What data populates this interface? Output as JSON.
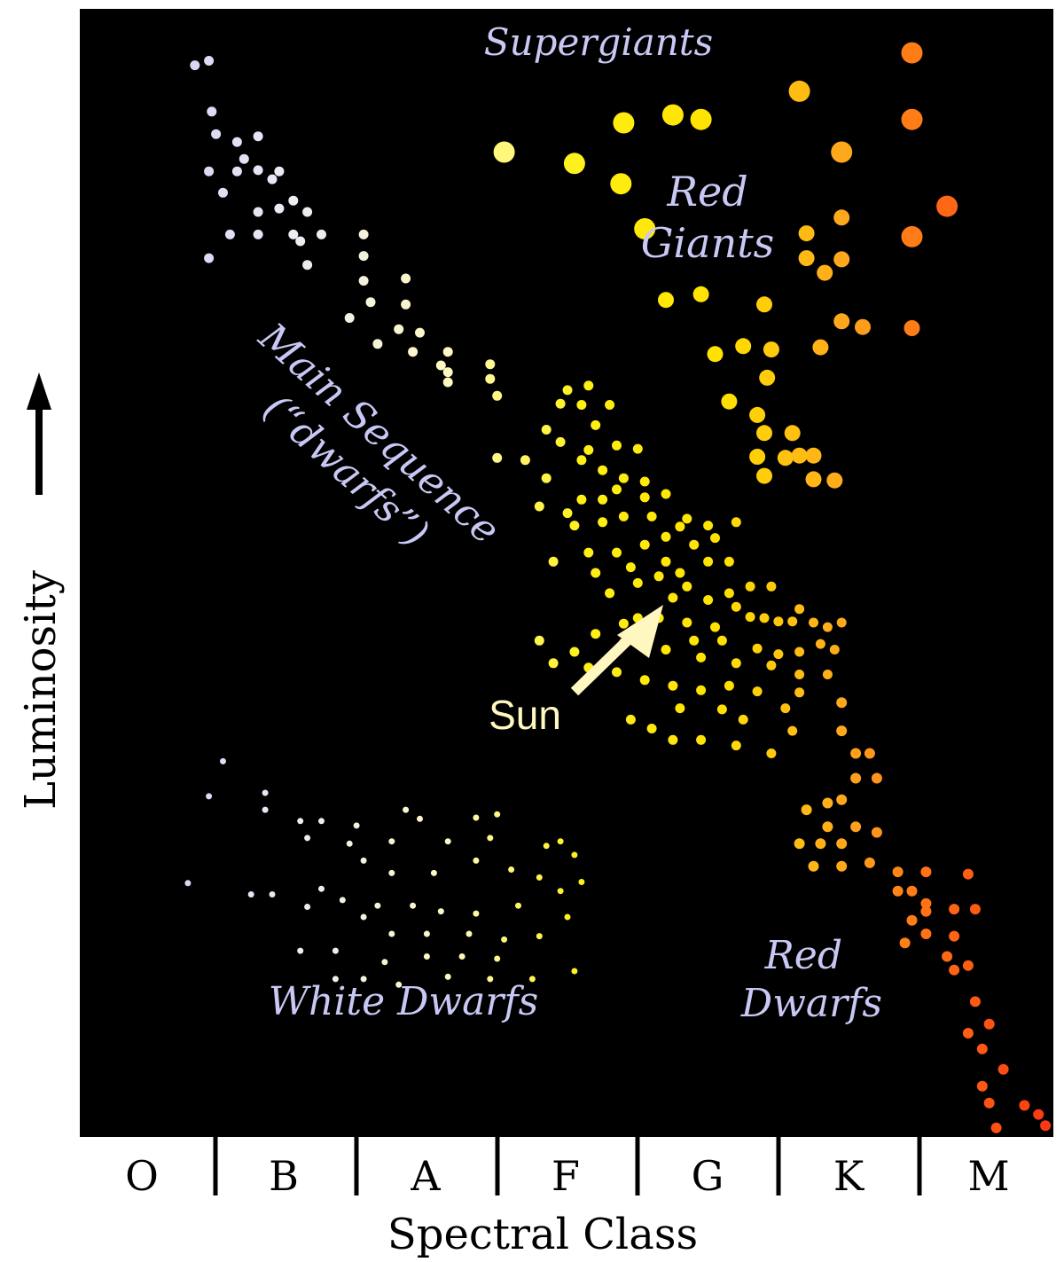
{
  "chart_data": {
    "type": "scatter",
    "title": "",
    "xlabel": "Spectral Class",
    "ylabel": "Luminosity",
    "categories": [
      "O",
      "B",
      "A",
      "F",
      "G",
      "K",
      "M"
    ],
    "x_range": [
      0,
      7
    ],
    "y_range": [
      0,
      1
    ],
    "grid": false,
    "legend": "none",
    "annotations": {
      "supergiants": "Supergiants",
      "red_giants_1": "Red",
      "red_giants_2": "Giants",
      "main_sequence_1": "Main Sequence",
      "main_sequence_2": "(“dwarfs”)",
      "sun": "Sun",
      "white_dwarfs": "White Dwarfs",
      "red_dwarfs_1": "Red",
      "red_dwarfs_2": "Dwarfs"
    },
    "colors": {
      "background": "#000000",
      "label": "#c8c8f5",
      "sun_label": "#fff7c0",
      "arrow": "#fff7c0",
      "axis_text": "#000000"
    },
    "series": [
      {
        "group": "supergiants",
        "color_gradient": true,
        "points": [
          [
            3.05,
            0.873
          ],
          [
            3.55,
            0.863
          ],
          [
            3.9,
            0.899
          ],
          [
            4.25,
            0.906
          ],
          [
            4.45,
            0.902
          ],
          [
            4.05,
            0.805
          ],
          [
            3.88,
            0.845
          ],
          [
            5.15,
            0.927
          ],
          [
            5.45,
            0.873
          ],
          [
            5.95,
            0.961
          ],
          [
            5.95,
            0.902
          ],
          [
            6.2,
            0.825
          ],
          [
            5.95,
            0.798
          ]
        ]
      },
      {
        "group": "red_giants",
        "color_gradient": true,
        "points": [
          [
            4.2,
            0.742
          ],
          [
            4.45,
            0.747
          ],
          [
            4.9,
            0.738
          ],
          [
            4.55,
            0.694
          ],
          [
            4.75,
            0.701
          ],
          [
            4.95,
            0.698
          ],
          [
            4.92,
            0.673
          ],
          [
            5.2,
            0.801
          ],
          [
            5.45,
            0.815
          ],
          [
            5.2,
            0.779
          ],
          [
            5.33,
            0.766
          ],
          [
            5.45,
            0.778
          ],
          [
            5.3,
            0.7
          ],
          [
            5.45,
            0.723
          ],
          [
            5.6,
            0.718
          ],
          [
            5.95,
            0.717
          ],
          [
            4.65,
            0.652
          ],
          [
            4.85,
            0.64
          ],
          [
            4.9,
            0.624
          ],
          [
            5.1,
            0.624
          ],
          [
            5.05,
            0.602
          ],
          [
            4.85,
            0.603
          ],
          [
            5.25,
            0.604
          ],
          [
            4.9,
            0.586
          ],
          [
            5.25,
            0.583
          ],
          [
            5.4,
            0.582
          ],
          [
            5.15,
            0.604
          ]
        ]
      },
      {
        "group": "main_sequence",
        "color_gradient": true,
        "points": [
          [
            0.85,
            0.95
          ],
          [
            0.95,
            0.954
          ],
          [
            0.97,
            0.909
          ],
          [
            1.0,
            0.889
          ],
          [
            1.15,
            0.882
          ],
          [
            1.3,
            0.887
          ],
          [
            1.2,
            0.867
          ],
          [
            0.95,
            0.856
          ],
          [
            1.15,
            0.856
          ],
          [
            1.3,
            0.857
          ],
          [
            1.45,
            0.856
          ],
          [
            1.4,
            0.849
          ],
          [
            1.05,
            0.837
          ],
          [
            1.55,
            0.83
          ],
          [
            1.3,
            0.82
          ],
          [
            1.45,
            0.823
          ],
          [
            1.65,
            0.82
          ],
          [
            1.1,
            0.8
          ],
          [
            1.3,
            0.8
          ],
          [
            1.55,
            0.8
          ],
          [
            1.75,
            0.8
          ],
          [
            1.6,
            0.794
          ],
          [
            0.95,
            0.779
          ],
          [
            1.65,
            0.773
          ],
          [
            2.05,
            0.8
          ],
          [
            2.05,
            0.781
          ],
          [
            2.05,
            0.759
          ],
          [
            2.35,
            0.761
          ],
          [
            2.1,
            0.74
          ],
          [
            2.35,
            0.738
          ],
          [
            1.95,
            0.726
          ],
          [
            2.3,
            0.716
          ],
          [
            2.45,
            0.713
          ],
          [
            2.15,
            0.703
          ],
          [
            2.4,
            0.696
          ],
          [
            2.65,
            0.696
          ],
          [
            2.6,
            0.684
          ],
          [
            2.95,
            0.685
          ],
          [
            2.65,
            0.678
          ],
          [
            2.95,
            0.672
          ],
          [
            2.65,
            0.669
          ],
          [
            3.0,
            0.657
          ],
          [
            3.5,
            0.662
          ],
          [
            3.65,
            0.666
          ],
          [
            3.45,
            0.65
          ],
          [
            3.6,
            0.649
          ],
          [
            3.8,
            0.649
          ],
          [
            3.7,
            0.631
          ],
          [
            3.35,
            0.627
          ],
          [
            3.45,
            0.616
          ],
          [
            3.65,
            0.609
          ],
          [
            3.85,
            0.613
          ],
          [
            4.0,
            0.61
          ],
          [
            3.0,
            0.602
          ],
          [
            3.2,
            0.6
          ],
          [
            3.6,
            0.6
          ],
          [
            3.75,
            0.591
          ],
          [
            3.9,
            0.584
          ],
          [
            4.05,
            0.581
          ],
          [
            3.35,
            0.584
          ],
          [
            3.85,
            0.574
          ],
          [
            4.05,
            0.567
          ],
          [
            3.75,
            0.565
          ],
          [
            3.6,
            0.565
          ],
          [
            4.2,
            0.57
          ],
          [
            3.3,
            0.559
          ],
          [
            3.5,
            0.553
          ],
          [
            3.9,
            0.55
          ],
          [
            4.1,
            0.55
          ],
          [
            3.75,
            0.545
          ],
          [
            3.55,
            0.542
          ],
          [
            4.35,
            0.548
          ],
          [
            4.3,
            0.541
          ],
          [
            4.5,
            0.542
          ],
          [
            4.7,
            0.545
          ],
          [
            4.2,
            0.532
          ],
          [
            4.4,
            0.525
          ],
          [
            4.55,
            0.531
          ],
          [
            4.05,
            0.525
          ],
          [
            3.85,
            0.518
          ],
          [
            3.65,
            0.518
          ],
          [
            3.4,
            0.51
          ],
          [
            3.7,
            0.5
          ],
          [
            3.95,
            0.505
          ],
          [
            4.2,
            0.51
          ],
          [
            4.5,
            0.51
          ],
          [
            4.65,
            0.51
          ],
          [
            4.3,
            0.5
          ],
          [
            4.15,
            0.497
          ],
          [
            4.0,
            0.491
          ],
          [
            4.35,
            0.488
          ],
          [
            3.8,
            0.482
          ],
          [
            4.25,
            0.478
          ],
          [
            4.5,
            0.476
          ],
          [
            4.65,
            0.482
          ],
          [
            4.8,
            0.488
          ],
          [
            4.95,
            0.488
          ],
          [
            4.7,
            0.47
          ],
          [
            4.8,
            0.461
          ],
          [
            4.9,
            0.46
          ],
          [
            5.0,
            0.457
          ],
          [
            5.1,
            0.457
          ],
          [
            5.15,
            0.468
          ],
          [
            5.25,
            0.456
          ],
          [
            5.35,
            0.452
          ],
          [
            5.45,
            0.456
          ],
          [
            5.3,
            0.437
          ],
          [
            5.4,
            0.432
          ],
          [
            5.15,
            0.43
          ],
          [
            5.0,
            0.428
          ],
          [
            4.85,
            0.433
          ],
          [
            4.6,
            0.44
          ],
          [
            4.4,
            0.44
          ],
          [
            4.55,
            0.452
          ],
          [
            4.35,
            0.456
          ],
          [
            4.15,
            0.46
          ],
          [
            4.0,
            0.46
          ],
          [
            4.05,
            0.446
          ],
          [
            3.9,
            0.438
          ],
          [
            4.2,
            0.432
          ],
          [
            4.45,
            0.425
          ],
          [
            4.7,
            0.42
          ],
          [
            4.95,
            0.418
          ],
          [
            5.15,
            0.41
          ],
          [
            5.35,
            0.41
          ],
          [
            5.15,
            0.394
          ],
          [
            5.05,
            0.38
          ],
          [
            4.85,
            0.395
          ],
          [
            4.65,
            0.4
          ],
          [
            4.45,
            0.396
          ],
          [
            4.25,
            0.4
          ],
          [
            4.05,
            0.405
          ],
          [
            3.85,
            0.412
          ],
          [
            3.65,
            0.416
          ],
          [
            3.4,
            0.42
          ],
          [
            3.3,
            0.44
          ],
          [
            3.55,
            0.43
          ],
          [
            3.7,
            0.446
          ],
          [
            3.9,
            0.455
          ],
          [
            4.3,
            0.38
          ],
          [
            4.6,
            0.379
          ],
          [
            4.75,
            0.37
          ],
          [
            5.1,
            0.36
          ],
          [
            4.95,
            0.34
          ],
          [
            4.7,
            0.347
          ],
          [
            4.45,
            0.352
          ],
          [
            4.25,
            0.352
          ],
          [
            4.1,
            0.362
          ],
          [
            3.95,
            0.37
          ]
        ]
      },
      {
        "group": "red_dwarfs",
        "color_gradient": true,
        "points": [
          [
            5.45,
            0.385
          ],
          [
            5.45,
            0.36
          ],
          [
            5.55,
            0.34
          ],
          [
            5.65,
            0.34
          ],
          [
            5.7,
            0.318
          ],
          [
            5.55,
            0.318
          ],
          [
            5.45,
            0.299
          ],
          [
            5.35,
            0.296
          ],
          [
            5.2,
            0.29
          ],
          [
            5.35,
            0.275
          ],
          [
            5.55,
            0.275
          ],
          [
            5.7,
            0.27
          ],
          [
            5.45,
            0.26
          ],
          [
            5.3,
            0.26
          ],
          [
            5.15,
            0.26
          ],
          [
            5.25,
            0.24
          ],
          [
            5.45,
            0.24
          ],
          [
            5.65,
            0.243
          ],
          [
            5.85,
            0.235
          ],
          [
            6.05,
            0.235
          ],
          [
            5.85,
            0.218
          ],
          [
            6.05,
            0.207
          ],
          [
            5.95,
            0.218
          ],
          [
            6.25,
            0.202
          ],
          [
            6.35,
            0.233
          ],
          [
            6.4,
            0.202
          ],
          [
            6.05,
            0.2
          ],
          [
            5.95,
            0.192
          ],
          [
            6.05,
            0.18
          ],
          [
            6.25,
            0.178
          ],
          [
            5.9,
            0.172
          ],
          [
            6.2,
            0.16
          ],
          [
            6.25,
            0.148
          ],
          [
            6.35,
            0.152
          ],
          [
            6.4,
            0.12
          ],
          [
            6.5,
            0.1
          ],
          [
            6.35,
            0.092
          ],
          [
            6.45,
            0.078
          ],
          [
            6.6,
            0.06
          ],
          [
            6.45,
            0.045
          ],
          [
            6.5,
            0.03
          ],
          [
            6.75,
            0.028
          ],
          [
            6.85,
            0.02
          ],
          [
            6.9,
            0.01
          ],
          [
            6.55,
            0.008
          ]
        ]
      },
      {
        "group": "white_dwarfs",
        "color_gradient": true,
        "points": [
          [
            1.05,
            0.333
          ],
          [
            0.95,
            0.302
          ],
          [
            1.35,
            0.305
          ],
          [
            1.35,
            0.29
          ],
          [
            1.6,
            0.28
          ],
          [
            1.75,
            0.28
          ],
          [
            2.0,
            0.276
          ],
          [
            2.35,
            0.29
          ],
          [
            2.45,
            0.282
          ],
          [
            2.85,
            0.283
          ],
          [
            3.0,
            0.286
          ],
          [
            1.65,
            0.265
          ],
          [
            1.95,
            0.26
          ],
          [
            2.25,
            0.262
          ],
          [
            2.65,
            0.262
          ],
          [
            2.95,
            0.265
          ],
          [
            3.35,
            0.258
          ],
          [
            3.45,
            0.262
          ],
          [
            3.55,
            0.25
          ],
          [
            2.05,
            0.245
          ],
          [
            2.25,
            0.234
          ],
          [
            2.55,
            0.234
          ],
          [
            2.85,
            0.245
          ],
          [
            3.1,
            0.237
          ],
          [
            3.3,
            0.23
          ],
          [
            3.6,
            0.226
          ],
          [
            0.8,
            0.225
          ],
          [
            1.25,
            0.215
          ],
          [
            1.4,
            0.215
          ],
          [
            1.75,
            0.22
          ],
          [
            1.9,
            0.21
          ],
          [
            2.15,
            0.205
          ],
          [
            2.4,
            0.205
          ],
          [
            2.6,
            0.2
          ],
          [
            2.85,
            0.198
          ],
          [
            3.15,
            0.205
          ],
          [
            3.45,
            0.218
          ],
          [
            3.5,
            0.195
          ],
          [
            1.65,
            0.204
          ],
          [
            2.05,
            0.195
          ],
          [
            2.25,
            0.18
          ],
          [
            2.5,
            0.18
          ],
          [
            2.8,
            0.18
          ],
          [
            3.05,
            0.175
          ],
          [
            3.3,
            0.178
          ],
          [
            1.85,
            0.165
          ],
          [
            2.2,
            0.155
          ],
          [
            2.5,
            0.16
          ],
          [
            2.75,
            0.16
          ],
          [
            3.0,
            0.158
          ],
          [
            2.65,
            0.142
          ],
          [
            2.95,
            0.14
          ],
          [
            3.25,
            0.14
          ],
          [
            3.55,
            0.147
          ],
          [
            1.6,
            0.165
          ],
          [
            1.85,
            0.14
          ],
          [
            2.05,
            0.14
          ],
          [
            2.3,
            0.135
          ]
        ]
      }
    ]
  }
}
